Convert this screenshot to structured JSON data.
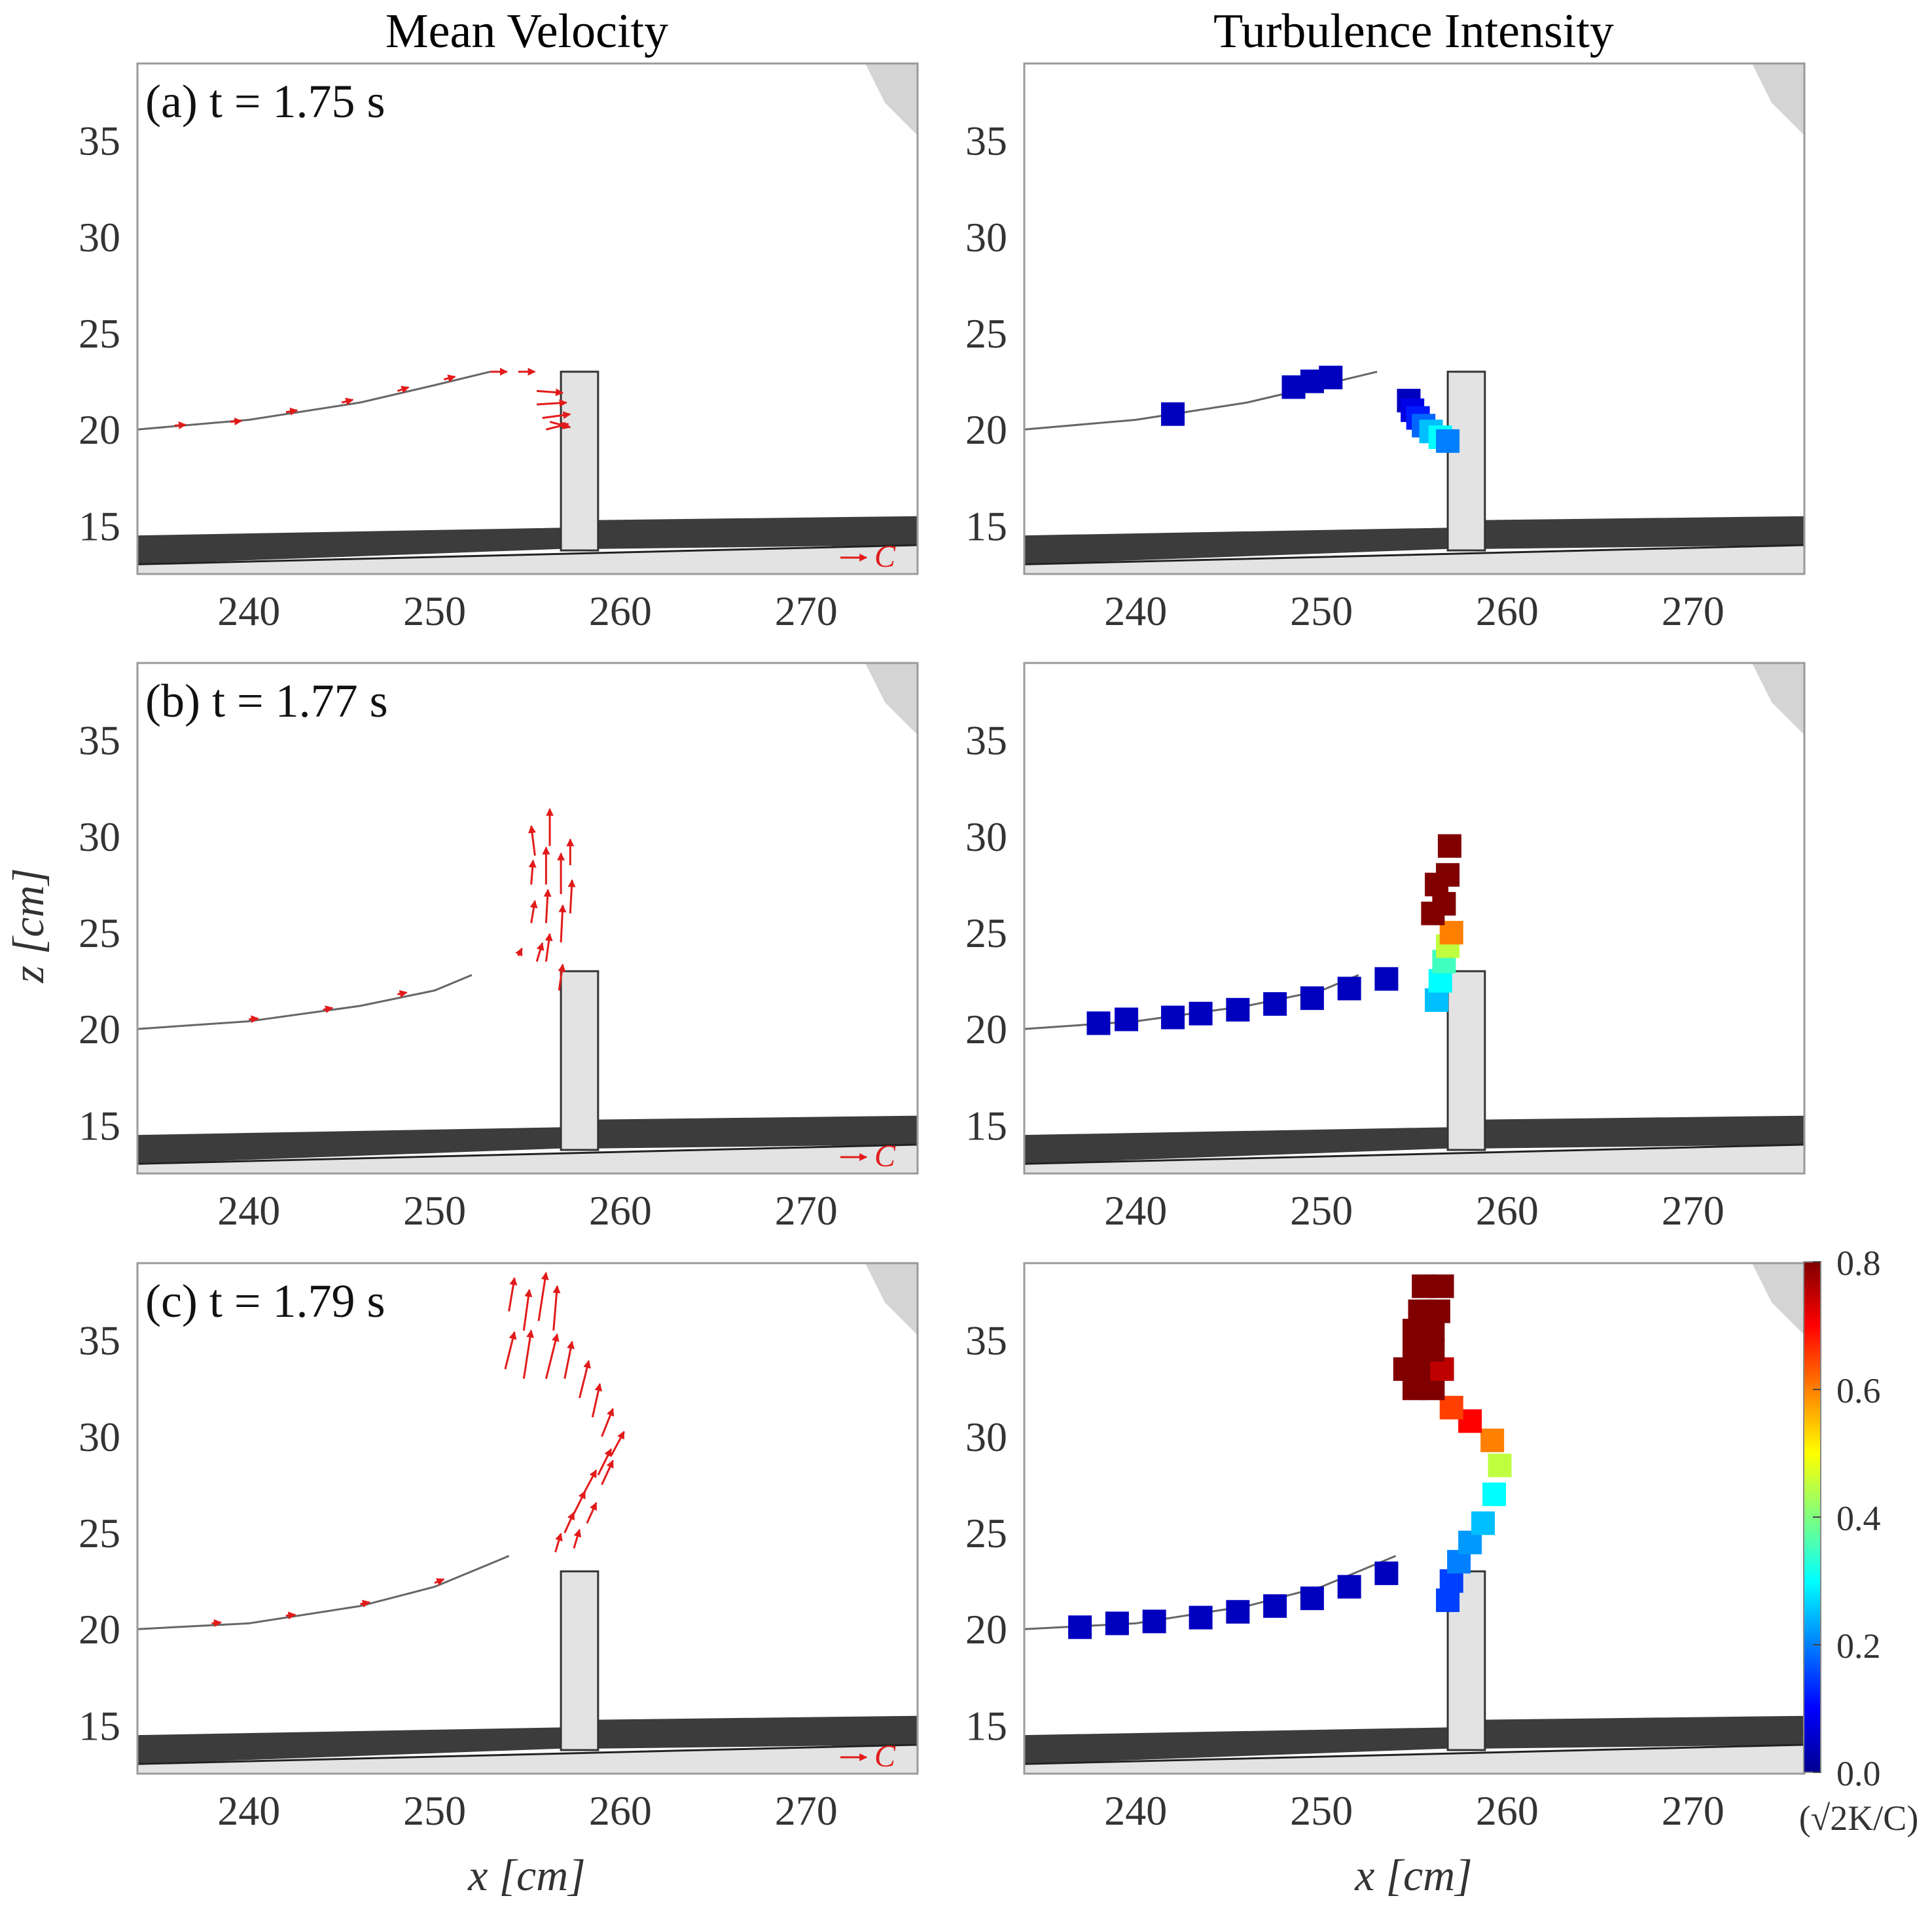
{
  "column_titles": [
    "Mean Velocity",
    "Turbulence Intensity"
  ],
  "panel_labels": [
    "(a) t = 1.75 s",
    "(b) t = 1.77 s",
    "(c) t = 1.79 s"
  ],
  "xlabel": "x [cm]",
  "ylabel": "z [cm]",
  "x_ticks": [
    "240",
    "250",
    "260",
    "270"
  ],
  "y_ticks": [
    "15",
    "20",
    "25",
    "30",
    "35"
  ],
  "ref_vector_label": "C",
  "colorbar": {
    "label": "(√2K/C)",
    "ticks": [
      "0.0",
      "0.2",
      "0.4",
      "0.6",
      "0.8"
    ],
    "range": [
      0.0,
      0.8
    ],
    "colormap": "jet"
  },
  "colors": {
    "vector": "#e21a1a",
    "wall": "#e3e3e3",
    "frame": "#9a9a9a"
  },
  "chart_data": [
    {
      "type": "scatter",
      "subplot": "(a) Mean Velocity",
      "xlim": [
        234,
        276
      ],
      "ylim": [
        12.5,
        39
      ],
      "surface_line": [
        [
          234,
          20
        ],
        [
          240,
          20.5
        ],
        [
          246,
          21.4
        ],
        [
          250,
          22.3
        ],
        [
          253,
          23
        ]
      ],
      "vectors": [
        [
          236,
          20.2,
          0.6,
          0.05
        ],
        [
          239,
          20.4,
          0.6,
          0.05
        ],
        [
          242,
          20.9,
          0.6,
          0.1
        ],
        [
          245,
          21.4,
          0.6,
          0.15
        ],
        [
          248,
          22.0,
          0.6,
          0.2
        ],
        [
          250.5,
          22.6,
          0.6,
          0.15
        ],
        [
          253,
          23.0,
          0.9,
          0
        ],
        [
          254.5,
          23.0,
          0.9,
          0
        ],
        [
          255.5,
          22.0,
          1.4,
          -0.1
        ],
        [
          255.5,
          21.3,
          1.6,
          0.1
        ],
        [
          255.8,
          20.6,
          1.5,
          0.2
        ],
        [
          256,
          20,
          1.2,
          0.3
        ],
        [
          256.2,
          20.4,
          1.1,
          -0.3
        ]
      ]
    },
    {
      "type": "heatmap",
      "subplot": "(a) Turbulence Intensity",
      "xlim": [
        234,
        276
      ],
      "ylim": [
        12.5,
        39
      ],
      "surface_line": [
        [
          234,
          20
        ],
        [
          240,
          20.5
        ],
        [
          246,
          21.4
        ],
        [
          250,
          22.3
        ],
        [
          253,
          23
        ]
      ],
      "cells": [
        [
          242,
          20.8,
          0.05
        ],
        [
          248.5,
          22.2,
          0.05
        ],
        [
          249.5,
          22.5,
          0.05
        ],
        [
          250.5,
          22.7,
          0.05
        ],
        [
          254.7,
          21.5,
          0.05
        ],
        [
          254.9,
          21.0,
          0.08
        ],
        [
          255.2,
          20.6,
          0.12
        ],
        [
          255.5,
          20.2,
          0.18
        ],
        [
          255.9,
          19.9,
          0.25
        ],
        [
          256.4,
          19.6,
          0.3
        ],
        [
          256.8,
          19.4,
          0.2
        ]
      ]
    },
    {
      "type": "scatter",
      "subplot": "(b) Mean Velocity",
      "xlim": [
        234,
        276
      ],
      "ylim": [
        12.5,
        39
      ],
      "surface_line": [
        [
          234,
          20
        ],
        [
          240,
          20.4
        ],
        [
          246,
          21.2
        ],
        [
          250,
          22.0
        ],
        [
          252,
          22.8
        ]
      ],
      "vectors": [
        [
          240,
          20.5,
          0.5,
          0.05
        ],
        [
          244,
          21.0,
          0.5,
          0.1
        ],
        [
          248,
          21.8,
          0.5,
          0.1
        ],
        [
          254.5,
          23.8,
          0.2,
          0.4
        ],
        [
          255.5,
          23.5,
          0.3,
          1.0
        ],
        [
          255.2,
          25.5,
          0.2,
          1.2
        ],
        [
          255.2,
          27.5,
          0.1,
          1.3
        ],
        [
          255.4,
          29.0,
          -0.2,
          1.6
        ],
        [
          256.0,
          23.5,
          0.2,
          1.5
        ],
        [
          256.0,
          25.5,
          0.1,
          1.8
        ],
        [
          256.0,
          27.5,
          0.0,
          2.0
        ],
        [
          256.2,
          29.5,
          0.0,
          2.0
        ],
        [
          256.7,
          22.0,
          0.2,
          1.4
        ],
        [
          256.8,
          24.5,
          0.1,
          2.0
        ],
        [
          256.8,
          27.0,
          0.0,
          2.2
        ],
        [
          257.3,
          26.0,
          0.1,
          1.8
        ],
        [
          257.3,
          28.5,
          0.0,
          1.4
        ]
      ]
    },
    {
      "type": "heatmap",
      "subplot": "(b) Turbulence Intensity",
      "xlim": [
        234,
        276
      ],
      "ylim": [
        12.5,
        39
      ],
      "surface_line": [
        [
          234,
          20
        ],
        [
          240,
          20.4
        ],
        [
          246,
          21.2
        ],
        [
          250,
          22.0
        ],
        [
          252,
          22.8
        ]
      ],
      "cells": [
        [
          238,
          20.3,
          0.05
        ],
        [
          239.5,
          20.5,
          0.05
        ],
        [
          242,
          20.6,
          0.05
        ],
        [
          243.5,
          20.8,
          0.05
        ],
        [
          245.5,
          21.0,
          0.05
        ],
        [
          247.5,
          21.3,
          0.05
        ],
        [
          249.5,
          21.6,
          0.05
        ],
        [
          251.5,
          22.1,
          0.05
        ],
        [
          253.5,
          22.6,
          0.05
        ],
        [
          256.2,
          21.5,
          0.25
        ],
        [
          256.4,
          22.5,
          0.3
        ],
        [
          256.6,
          23.5,
          0.35
        ],
        [
          256.8,
          24.3,
          0.45
        ],
        [
          257.0,
          25.0,
          0.6
        ],
        [
          256.0,
          26.0,
          0.8
        ],
        [
          256.6,
          26.5,
          0.8
        ],
        [
          256.2,
          27.5,
          0.8
        ],
        [
          256.8,
          28.0,
          0.8
        ],
        [
          256.9,
          29.5,
          0.8
        ]
      ]
    },
    {
      "type": "scatter",
      "subplot": "(c) Mean Velocity",
      "xlim": [
        234,
        276
      ],
      "ylim": [
        12.5,
        39
      ],
      "surface_line": [
        [
          234,
          20
        ],
        [
          240,
          20.3
        ],
        [
          246,
          21.2
        ],
        [
          250,
          22.2
        ],
        [
          254,
          23.8
        ]
      ],
      "vectors": [
        [
          238,
          20.3,
          0.5,
          0.05
        ],
        [
          242,
          20.7,
          0.5,
          0.05
        ],
        [
          246,
          21.3,
          0.5,
          0.1
        ],
        [
          250,
          22.4,
          0.5,
          0.2
        ],
        [
          254,
          36.5,
          0.3,
          1.8
        ],
        [
          254.8,
          35.5,
          0.3,
          2.2
        ],
        [
          255.6,
          36.0,
          0.4,
          2.6
        ],
        [
          256.4,
          35.5,
          0.2,
          2.4
        ],
        [
          253.8,
          33.5,
          0.5,
          2.0
        ],
        [
          254.8,
          33.0,
          0.4,
          2.6
        ],
        [
          256.0,
          33.0,
          0.6,
          2.4
        ],
        [
          257.0,
          33.0,
          0.4,
          2.0
        ],
        [
          257.8,
          32.0,
          0.5,
          2.0
        ],
        [
          258.5,
          31.0,
          0.4,
          1.8
        ],
        [
          259.0,
          30.0,
          0.6,
          1.5
        ],
        [
          259.5,
          29.0,
          0.7,
          1.3
        ],
        [
          258.8,
          28.0,
          0.7,
          1.4
        ],
        [
          258.0,
          27.0,
          0.7,
          1.3
        ],
        [
          257.5,
          26.0,
          0.6,
          1.2
        ],
        [
          257.0,
          25.0,
          0.5,
          1.1
        ],
        [
          256.5,
          24.0,
          0.3,
          1.0
        ],
        [
          257.5,
          24.2,
          0.3,
          1.0
        ],
        [
          258.2,
          25.5,
          0.5,
          1.1
        ],
        [
          259.0,
          27.5,
          0.6,
          1.3
        ]
      ]
    },
    {
      "type": "heatmap",
      "subplot": "(c) Turbulence Intensity",
      "xlim": [
        234,
        276
      ],
      "ylim": [
        12.5,
        39
      ],
      "surface_line": [
        [
          234,
          20
        ],
        [
          240,
          20.3
        ],
        [
          246,
          21.2
        ],
        [
          250,
          22.2
        ],
        [
          254,
          23.8
        ]
      ],
      "cells": [
        [
          237,
          20.1,
          0.05
        ],
        [
          239,
          20.3,
          0.05
        ],
        [
          241,
          20.4,
          0.05
        ],
        [
          243.5,
          20.6,
          0.05
        ],
        [
          245.5,
          20.9,
          0.05
        ],
        [
          247.5,
          21.2,
          0.05
        ],
        [
          249.5,
          21.6,
          0.05
        ],
        [
          251.5,
          22.2,
          0.05
        ],
        [
          253.5,
          22.9,
          0.05
        ],
        [
          256.8,
          21.5,
          0.15
        ],
        [
          257.0,
          22.5,
          0.15
        ],
        [
          257.4,
          23.5,
          0.2
        ],
        [
          258.0,
          24.5,
          0.22
        ],
        [
          258.7,
          25.5,
          0.25
        ],
        [
          259.3,
          27.0,
          0.3
        ],
        [
          259.6,
          28.5,
          0.45
        ],
        [
          259.2,
          29.8,
          0.6
        ],
        [
          258.0,
          30.8,
          0.7
        ],
        [
          257.0,
          31.5,
          0.65
        ],
        [
          255.0,
          32.5,
          0.8
        ],
        [
          256.0,
          32.5,
          0.8
        ],
        [
          254.5,
          33.5,
          0.8
        ],
        [
          255.5,
          33.5,
          0.8
        ],
        [
          256.5,
          33.5,
          0.75
        ],
        [
          255.0,
          34.5,
          0.8
        ],
        [
          256.0,
          34.5,
          0.8
        ],
        [
          255.0,
          35.5,
          0.8
        ],
        [
          256.0,
          35.5,
          0.8
        ],
        [
          255.3,
          36.5,
          0.8
        ],
        [
          256.3,
          36.5,
          0.8
        ],
        [
          255.5,
          37.8,
          0.8
        ],
        [
          256.5,
          37.8,
          0.8
        ]
      ]
    }
  ]
}
